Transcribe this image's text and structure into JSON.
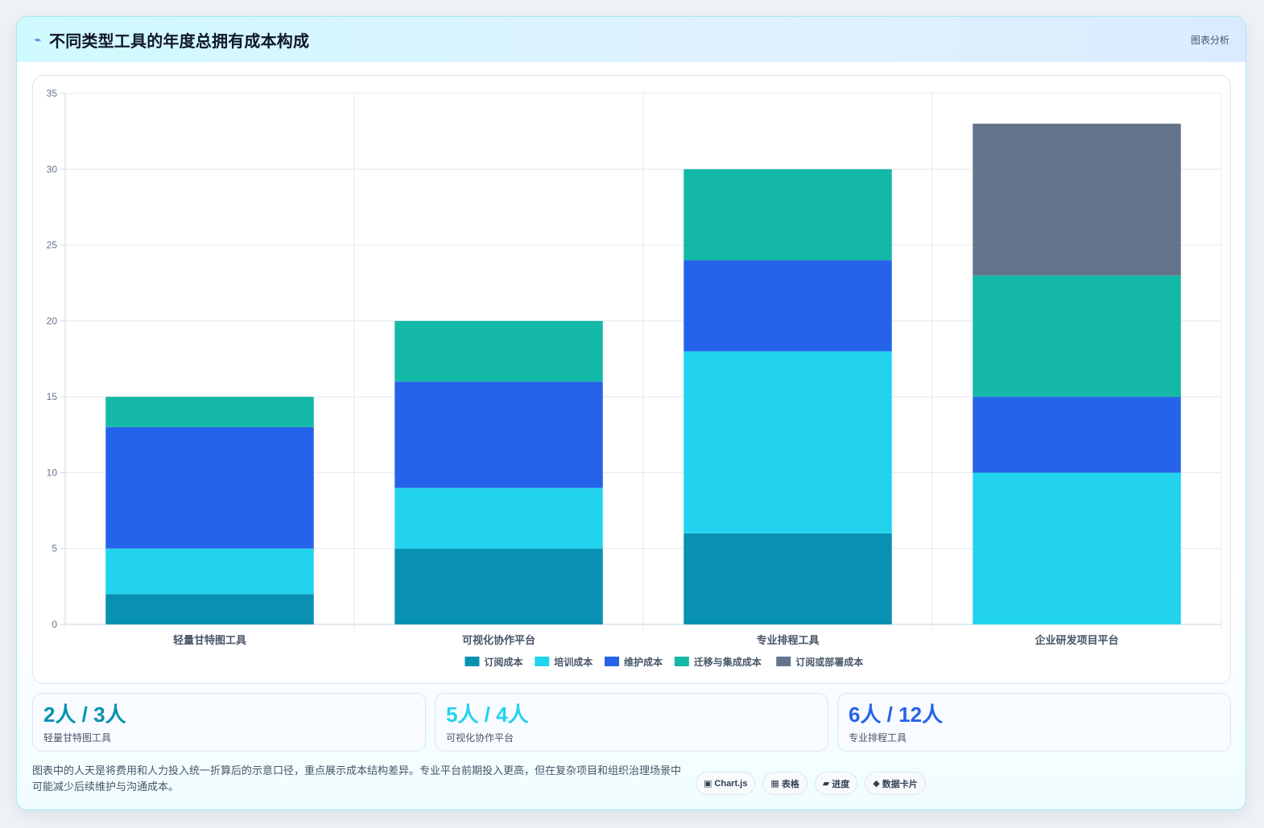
{
  "header": {
    "title": "不同类型工具的年度总拥有成本构成",
    "tag": "图表分析"
  },
  "chart_data": {
    "type": "bar",
    "stacked": true,
    "categories": [
      "轻量甘特图工具",
      "可视化协作平台",
      "专业排程工具",
      "企业研发项目平台"
    ],
    "series": [
      {
        "name": "订阅成本",
        "color": "#0891b2",
        "values": [
          2,
          5,
          6,
          0
        ]
      },
      {
        "name": "培训成本",
        "color": "#22d3ee",
        "values": [
          3,
          4,
          12,
          10
        ]
      },
      {
        "name": "维护成本",
        "color": "#2563eb",
        "values": [
          8,
          7,
          6,
          5
        ]
      },
      {
        "name": "迁移与集成成本",
        "color": "#14b8a6",
        "values": [
          2,
          4,
          6,
          8
        ]
      },
      {
        "name": "订阅或部署成本",
        "color": "#64748b",
        "values": [
          0,
          0,
          0,
          10
        ]
      }
    ],
    "ylim": [
      0,
      35
    ],
    "yticks": [
      0,
      5,
      10,
      15,
      20,
      25,
      30,
      35
    ],
    "grid": true,
    "legend": "bottom"
  },
  "stats": [
    {
      "value": "2人 / 3人",
      "label": "轻量甘特图工具",
      "color": "#0891b2"
    },
    {
      "value": "5人 / 4人",
      "label": "可视化协作平台",
      "color": "#22d3ee"
    },
    {
      "value": "6人 / 12人",
      "label": "专业排程工具",
      "color": "#2563eb"
    }
  ],
  "footnote": "图表中的人天是将费用和人力投入统一折算后的示意口径，重点展示成本结构差异。专业平台前期投入更高，但在复杂项目和组织治理场景中可能减少后续维护与沟通成本。",
  "chips": [
    {
      "icon": "▣",
      "label": "Chart.js"
    },
    {
      "icon": "▦",
      "label": "表格"
    },
    {
      "icon": "▰",
      "label": "进度"
    },
    {
      "icon": "◆",
      "label": "数据卡片"
    }
  ]
}
